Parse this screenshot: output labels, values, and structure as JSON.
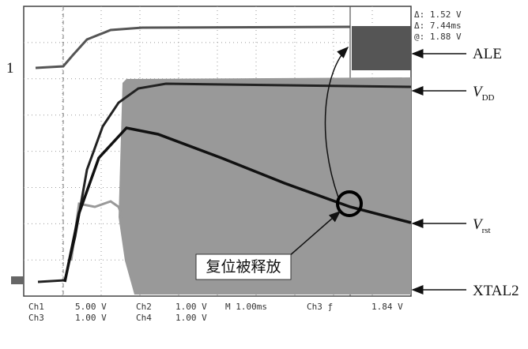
{
  "cursor_readout": [
    "Δ: 1.52 V",
    "Δ: 7.44ms",
    "@: 1.88 V"
  ],
  "channel_marker": "1",
  "labels": {
    "ale": "ALE",
    "vdd": {
      "main": "V",
      "sub": "DD"
    },
    "vrst": {
      "main": "V",
      "sub": "rst"
    },
    "xtal2": "XTAL2"
  },
  "annotation": "复位被释放",
  "status": [
    [
      "Ch1",
      "5.00 V",
      "Ch2",
      "1.00 V",
      "M 1.00ms",
      "Ch3 ƒ",
      "1.84 V"
    ],
    [
      "Ch3",
      "1.00 V",
      "Ch4",
      "1.00 V"
    ]
  ]
}
